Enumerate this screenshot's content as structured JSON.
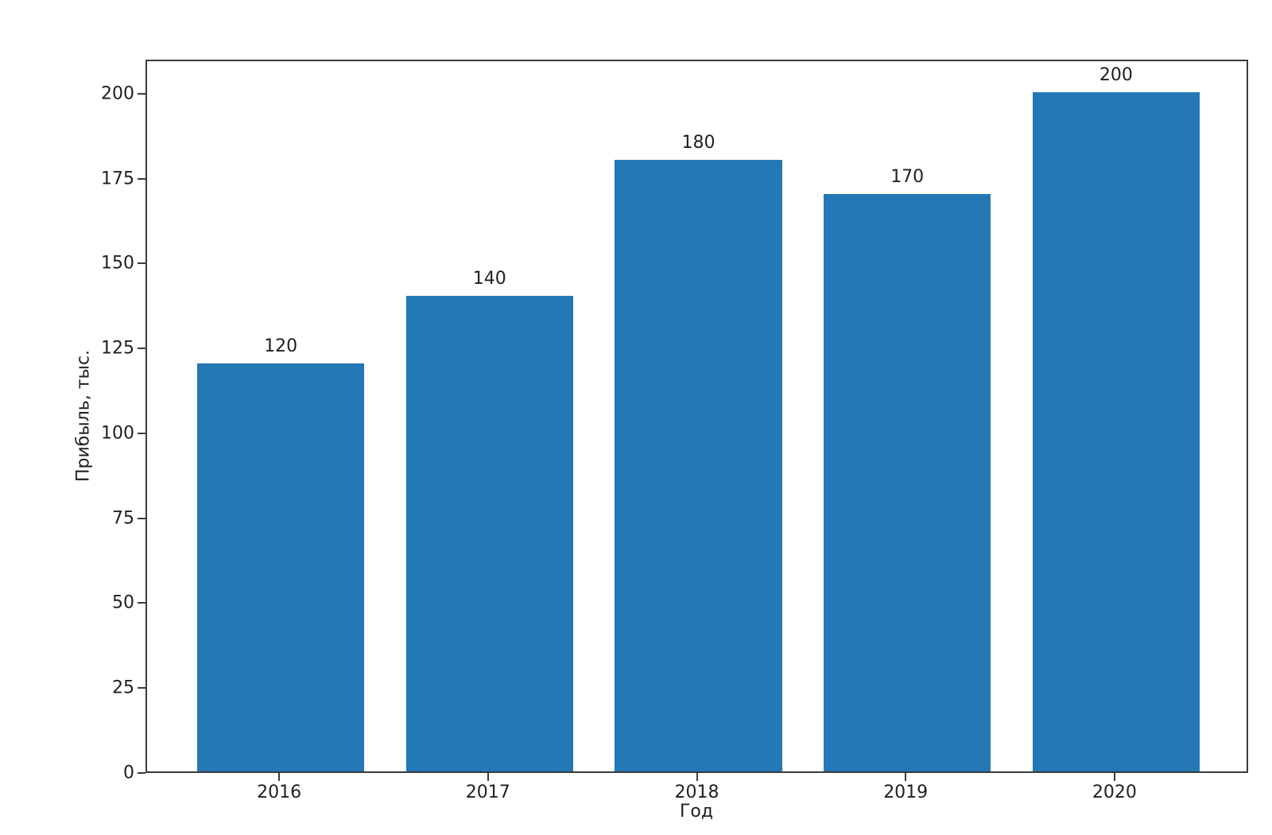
{
  "figure": {
    "background": "#ffffff"
  },
  "chart_data": {
    "type": "bar",
    "categories": [
      "2016",
      "2017",
      "2018",
      "2019",
      "2020"
    ],
    "values": [
      120,
      140,
      180,
      170,
      200
    ],
    "bar_labels": [
      "120",
      "140",
      "180",
      "170",
      "200"
    ],
    "title": "",
    "xlabel": "Год",
    "ylabel": "Прибыль, тыс.",
    "yticks": [
      0,
      25,
      50,
      75,
      100,
      125,
      150,
      175,
      200
    ],
    "ylim": [
      0,
      210
    ],
    "xlim_units": [
      -0.64,
      4.64
    ],
    "bar_width_units": 0.8,
    "grid": false,
    "legend": null,
    "bar_color": "#2478b5",
    "axis_color": "#3b3b3b",
    "text_color": "#1f1f1f"
  }
}
